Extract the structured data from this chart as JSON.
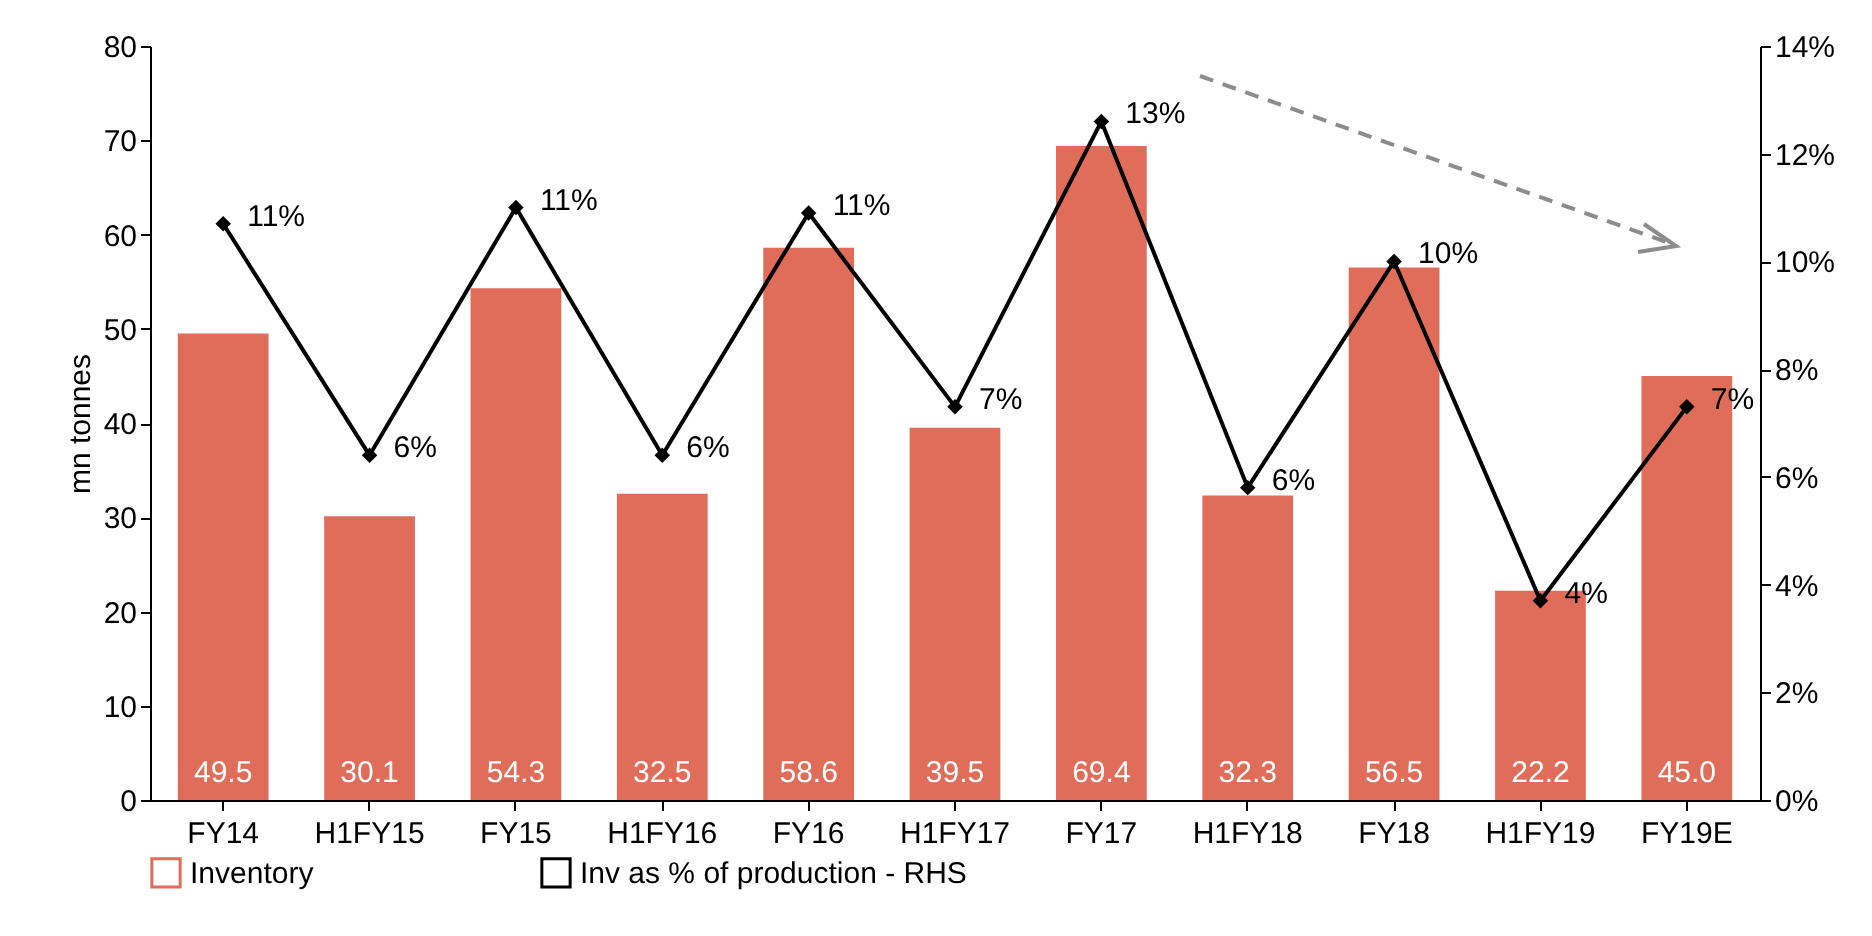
{
  "chart_data": {
    "type": "bar",
    "ylabel": "mn tonnes",
    "categories": [
      "FY14",
      "H1FY15",
      "FY15",
      "H1FY16",
      "FY16",
      "H1FY17",
      "FY17",
      "H1FY18",
      "FY18",
      "H1FY19",
      "FY19E"
    ],
    "series": [
      {
        "name": "Inventory",
        "color": "#e06c5a",
        "values": [
          49.5,
          30.1,
          54.3,
          32.5,
          58.6,
          39.5,
          69.4,
          32.3,
          56.5,
          22.2,
          45.0
        ],
        "value_labels": [
          "49.5",
          "30.1",
          "54.3",
          "32.5",
          "58.6",
          "39.5",
          "69.4",
          "32.3",
          "56.5",
          "22.2",
          "45.0"
        ]
      },
      {
        "name": "Inv as % of production - RHS",
        "type": "line",
        "axis": "y2",
        "color": "#000000",
        "marker": "diamond",
        "values": [
          10.7,
          6.4,
          11.0,
          6.4,
          10.9,
          7.3,
          12.6,
          5.8,
          10.0,
          3.7,
          7.3
        ],
        "value_labels": [
          "11%",
          "6%",
          "11%",
          "6%",
          "11%",
          "7%",
          "13%",
          "6%",
          "10%",
          "4%",
          "7%"
        ]
      }
    ],
    "ylim": [
      0,
      80
    ],
    "yticks": [
      0,
      10,
      20,
      30,
      40,
      50,
      60,
      70,
      80
    ],
    "y2lim": [
      0,
      14
    ],
    "y2ticks": [
      {
        "value": 0,
        "label": "0%"
      },
      {
        "value": 2,
        "label": "2%"
      },
      {
        "value": 4,
        "label": "4%"
      },
      {
        "value": 6,
        "label": "6%"
      },
      {
        "value": 8,
        "label": "8%"
      },
      {
        "value": 10,
        "label": "10%"
      },
      {
        "value": 12,
        "label": "12%"
      },
      {
        "value": 14,
        "label": "14%"
      }
    ],
    "legend": "bottom",
    "grid": false
  }
}
